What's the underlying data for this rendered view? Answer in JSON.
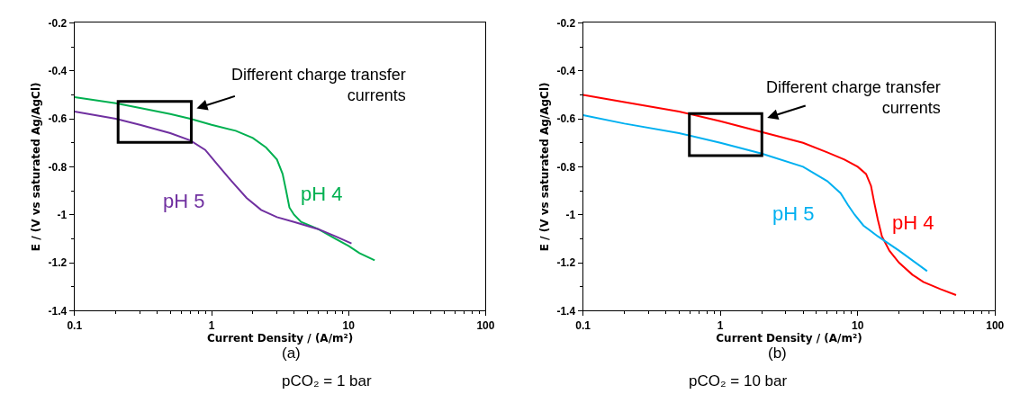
{
  "chart_data": [
    {
      "type": "line",
      "xlabel": "Current Density / (A/m²)",
      "ylabel": "E / (V vs saturated Ag/AgCl)",
      "log": "x",
      "xlim": [
        0.1,
        100
      ],
      "xticks": [
        0.1,
        1,
        10,
        100
      ],
      "ylim": [
        -1.4,
        -0.2
      ],
      "yticks": [
        -1.4,
        -1.2,
        -1,
        -0.8,
        -0.6,
        -0.4,
        -0.2
      ],
      "legend": false,
      "marker": "none",
      "line_style": "solid",
      "series": [
        {
          "name": "pH 4",
          "color": "#00b050",
          "x": [
            0.1,
            0.2,
            0.3,
            0.5,
            0.7,
            1,
            1.5,
            2,
            2.5,
            3,
            3.3,
            3.5,
            3.7,
            4,
            4.5,
            6,
            8,
            10,
            12,
            15.5
          ],
          "values": [
            -0.51,
            -0.535,
            -0.555,
            -0.58,
            -0.6,
            -0.625,
            -0.65,
            -0.68,
            -0.72,
            -0.77,
            -0.83,
            -0.9,
            -0.97,
            -1.0,
            -1.03,
            -1.06,
            -1.1,
            -1.13,
            -1.16,
            -1.19
          ]
        },
        {
          "name": "pH 5",
          "color": "#7030a0",
          "x": [
            0.1,
            0.2,
            0.3,
            0.5,
            0.7,
            0.9,
            1.1,
            1.4,
            1.8,
            2.3,
            3,
            4,
            6,
            8,
            10.5
          ],
          "values": [
            -0.57,
            -0.6,
            -0.625,
            -0.66,
            -0.69,
            -0.73,
            -0.79,
            -0.86,
            -0.93,
            -0.98,
            -1.01,
            -1.03,
            -1.06,
            -1.09,
            -1.12
          ]
        }
      ],
      "annotations": [
        "Different charge transfer\ncurrents",
        "(a)",
        "pCO₂ = 1 bar"
      ]
    },
    {
      "type": "line",
      "xlabel": "Current Density / (A/m²)",
      "ylabel": "E / (V vs saturated Ag/AgCl)",
      "log": "x",
      "xlim": [
        0.1,
        100
      ],
      "xticks": [
        0.1,
        1,
        10,
        100
      ],
      "ylim": [
        -1.4,
        -0.2
      ],
      "yticks": [
        -1.4,
        -1.2,
        -1,
        -0.8,
        -0.6,
        -0.4,
        -0.2
      ],
      "legend": false,
      "marker": "none",
      "line_style": "solid",
      "series": [
        {
          "name": "pH 4",
          "color": "#ff0000",
          "x": [
            0.1,
            0.2,
            0.5,
            1,
            2,
            4,
            6,
            8,
            10,
            11.5,
            12.5,
            13.2,
            14,
            15,
            17,
            20,
            25,
            30,
            40,
            52
          ],
          "values": [
            -0.5,
            -0.53,
            -0.57,
            -0.61,
            -0.655,
            -0.7,
            -0.74,
            -0.77,
            -0.8,
            -0.83,
            -0.88,
            -0.95,
            -1.02,
            -1.09,
            -1.15,
            -1.2,
            -1.25,
            -1.28,
            -1.31,
            -1.335
          ]
        },
        {
          "name": "pH 5",
          "color": "#00b0f0",
          "x": [
            0.1,
            0.2,
            0.5,
            1,
            2,
            4,
            6,
            7.5,
            8.5,
            9.5,
            11,
            14,
            20,
            32
          ],
          "values": [
            -0.585,
            -0.62,
            -0.66,
            -0.7,
            -0.745,
            -0.8,
            -0.86,
            -0.91,
            -0.96,
            -1.0,
            -1.045,
            -1.09,
            -1.15,
            -1.235
          ]
        }
      ],
      "annotations": [
        "Different charge transfer\ncurrents",
        "(b)",
        "pCO₂ = 10 bar"
      ]
    }
  ]
}
